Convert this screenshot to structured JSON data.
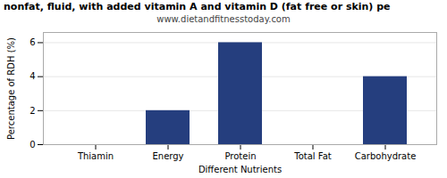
{
  "chart_data": {
    "type": "bar",
    "title": "nonfat, fluid, with added vitamin A and vitamin D (fat free or skin) pe",
    "subtitle": "www.dietandfitnesstoday.com",
    "xlabel": "Different Nutrients",
    "ylabel": "Percentage of RDH (%)",
    "categories": [
      "Thiamin",
      "Energy",
      "Protein",
      "Total Fat",
      "Carbohydrate"
    ],
    "values": [
      0,
      2,
      6,
      0,
      4
    ],
    "color": "#253e7e",
    "ylim": [
      0,
      6.6
    ],
    "yticks": [
      0,
      2,
      4,
      6
    ],
    "grid": true
  }
}
